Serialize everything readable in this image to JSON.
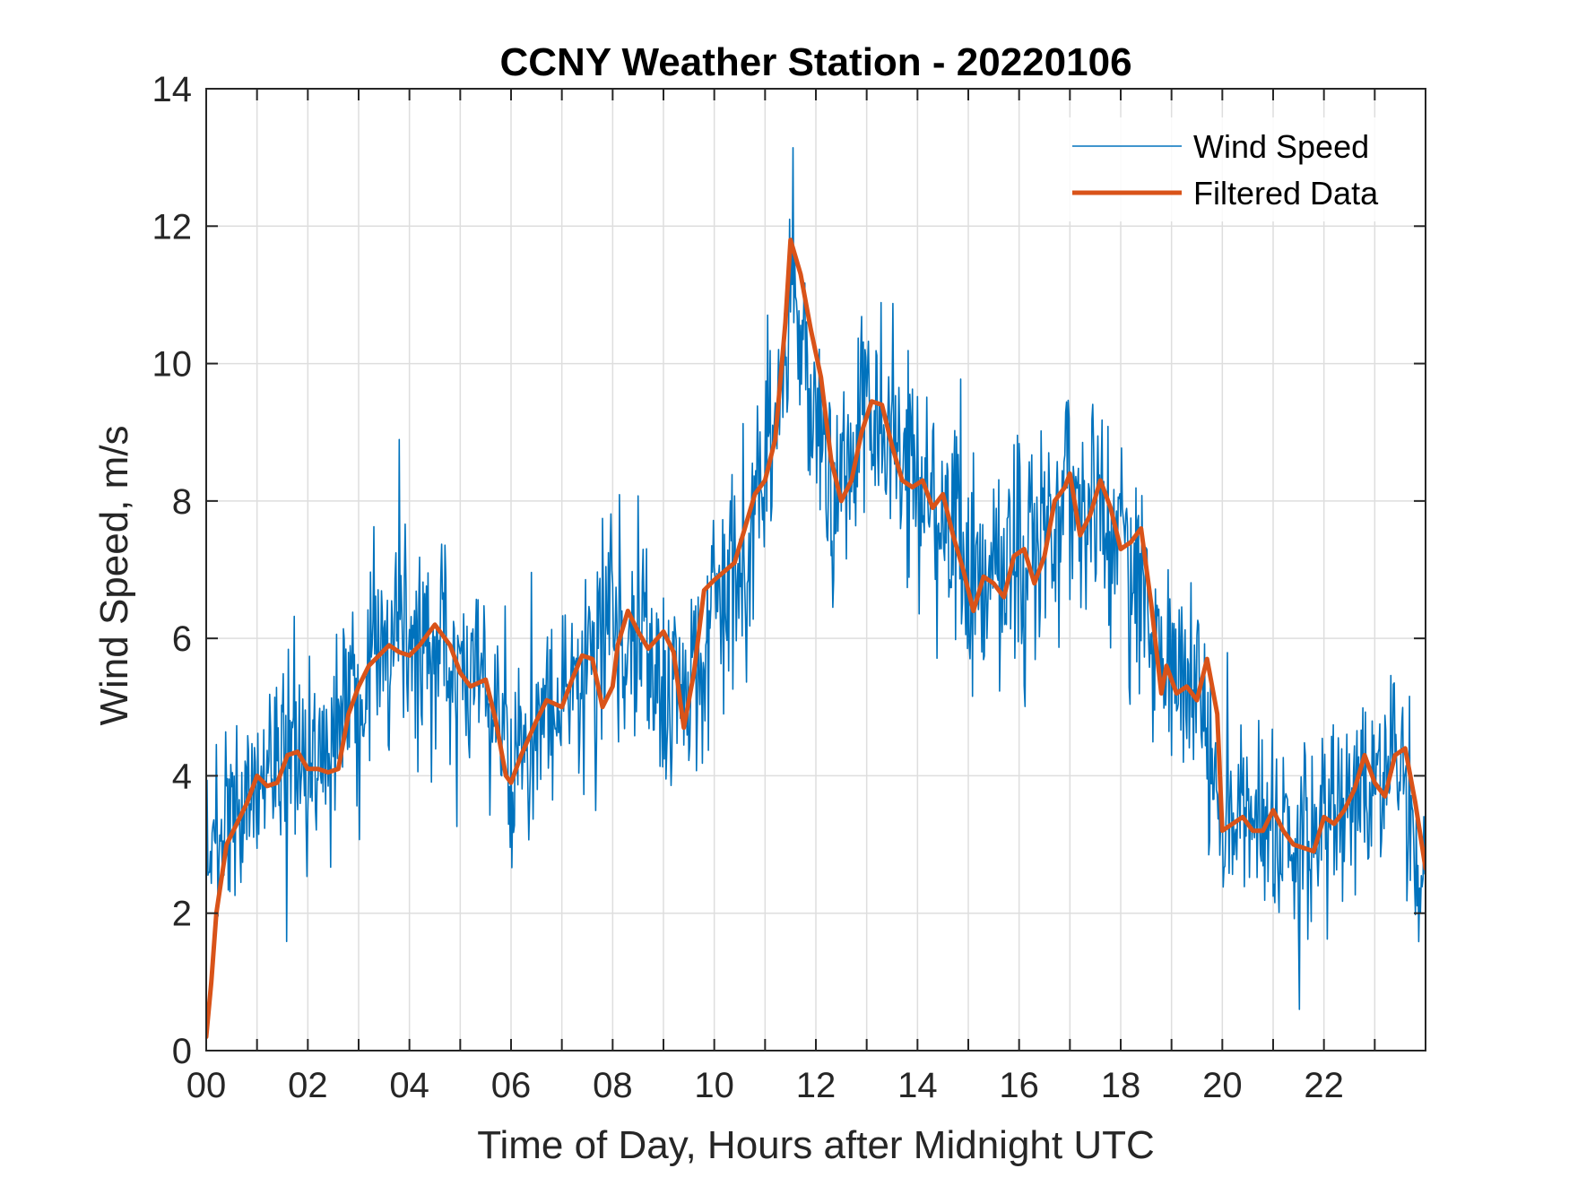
{
  "chart_data": {
    "type": "line",
    "title": "CCNY Weather Station - 20220106",
    "xlabel": "Time of Day, Hours after Midnight UTC",
    "ylabel": "Wind Speed, m/s",
    "xlim": [
      0,
      24
    ],
    "ylim": [
      0,
      14
    ],
    "x_ticks": [
      0,
      2,
      4,
      6,
      8,
      10,
      12,
      14,
      16,
      18,
      20,
      22
    ],
    "x_tick_labels": [
      "00",
      "02",
      "04",
      "06",
      "08",
      "10",
      "12",
      "14",
      "16",
      "18",
      "20",
      "22"
    ],
    "y_ticks": [
      0,
      2,
      4,
      6,
      8,
      10,
      12,
      14
    ],
    "y_tick_labels": [
      "0",
      "2",
      "4",
      "6",
      "8",
      "10",
      "12",
      "14"
    ],
    "grid": true,
    "legend_position": "top-right",
    "series": [
      {
        "name": "Wind Speed",
        "color": "#0072BD",
        "style": "raw",
        "x": [
          0,
          0.5,
          1,
          1.5,
          2,
          2.5,
          3,
          3.5,
          4,
          4.5,
          5,
          5.5,
          6,
          6.5,
          7,
          7.5,
          8,
          8.5,
          9,
          9.5,
          10,
          10.5,
          11,
          11.25,
          11.5,
          11.75,
          12,
          12.5,
          13,
          13.5,
          14,
          14.5,
          15,
          15.5,
          16,
          16.5,
          17,
          17.5,
          18,
          18.5,
          19,
          19.5,
          20,
          20.5,
          21,
          21.5,
          22,
          22.5,
          23,
          23.5,
          24
        ],
        "values": [
          3.0,
          3.4,
          3.9,
          4.3,
          4.1,
          4.3,
          5.2,
          5.8,
          5.9,
          6.0,
          5.6,
          5.3,
          4.3,
          4.8,
          5.0,
          5.6,
          6.3,
          6.0,
          5.3,
          5.2,
          6.8,
          7.0,
          8.2,
          9.5,
          11.0,
          10.6,
          9.0,
          8.2,
          9.3,
          8.9,
          8.3,
          8.0,
          6.6,
          6.8,
          7.1,
          7.6,
          8.0,
          7.9,
          7.4,
          6.2,
          5.3,
          5.2,
          3.3,
          3.2,
          3.2,
          3.0,
          3.3,
          3.6,
          4.2,
          4.0,
          2.5
        ],
        "noise_amplitude": 1.3
      },
      {
        "name": "Filtered Data",
        "color": "#D95319",
        "style": "smooth",
        "x": [
          0,
          0.1,
          0.2,
          0.4,
          0.6,
          0.8,
          1.0,
          1.2,
          1.4,
          1.6,
          1.8,
          2.0,
          2.2,
          2.4,
          2.6,
          2.8,
          3.0,
          3.2,
          3.4,
          3.6,
          3.8,
          4.0,
          4.2,
          4.5,
          4.8,
          5.0,
          5.2,
          5.5,
          5.7,
          5.9,
          6.0,
          6.2,
          6.5,
          6.7,
          7.0,
          7.2,
          7.4,
          7.6,
          7.8,
          8.0,
          8.1,
          8.3,
          8.5,
          8.7,
          9.0,
          9.2,
          9.4,
          9.6,
          9.8,
          10.0,
          10.4,
          10.6,
          10.8,
          11.0,
          11.2,
          11.4,
          11.5,
          11.7,
          11.9,
          12.1,
          12.3,
          12.5,
          12.7,
          12.9,
          13.1,
          13.3,
          13.5,
          13.7,
          13.9,
          14.1,
          14.3,
          14.5,
          14.7,
          14.9,
          15.1,
          15.3,
          15.5,
          15.7,
          15.9,
          16.1,
          16.3,
          16.5,
          16.7,
          16.9,
          17.0,
          17.2,
          17.4,
          17.6,
          17.8,
          18.0,
          18.2,
          18.4,
          18.6,
          18.8,
          18.9,
          19.1,
          19.3,
          19.5,
          19.7,
          19.9,
          20.0,
          20.2,
          20.4,
          20.6,
          20.8,
          21.0,
          21.2,
          21.4,
          21.6,
          21.8,
          22.0,
          22.2,
          22.4,
          22.6,
          22.8,
          23.0,
          23.2,
          23.4,
          23.6,
          23.8,
          24.0
        ],
        "values": [
          0.2,
          1.0,
          2.0,
          3.0,
          3.3,
          3.6,
          4.0,
          3.85,
          3.9,
          4.3,
          4.35,
          4.1,
          4.1,
          4.05,
          4.1,
          4.9,
          5.3,
          5.6,
          5.75,
          5.9,
          5.8,
          5.75,
          5.9,
          6.2,
          5.9,
          5.5,
          5.3,
          5.4,
          4.8,
          4.0,
          3.9,
          4.3,
          4.8,
          5.1,
          5.0,
          5.4,
          5.75,
          5.7,
          5.0,
          5.3,
          5.9,
          6.4,
          6.1,
          5.85,
          6.1,
          5.8,
          4.7,
          5.5,
          6.7,
          6.85,
          7.1,
          7.6,
          8.1,
          8.3,
          8.9,
          10.6,
          11.8,
          11.3,
          10.5,
          9.8,
          8.6,
          8.0,
          8.3,
          9.0,
          9.45,
          9.4,
          8.8,
          8.3,
          8.2,
          8.3,
          7.9,
          8.1,
          7.5,
          7.0,
          6.4,
          6.9,
          6.8,
          6.6,
          7.2,
          7.3,
          6.8,
          7.2,
          8.0,
          8.2,
          8.4,
          7.5,
          7.8,
          8.3,
          7.9,
          7.3,
          7.4,
          7.6,
          6.5,
          5.2,
          5.6,
          5.2,
          5.3,
          5.1,
          5.7,
          4.9,
          3.2,
          3.3,
          3.4,
          3.2,
          3.2,
          3.5,
          3.2,
          3.0,
          2.95,
          2.9,
          3.4,
          3.3,
          3.5,
          3.8,
          4.3,
          3.9,
          3.7,
          4.3,
          4.4,
          3.6,
          2.65
        ]
      }
    ]
  }
}
